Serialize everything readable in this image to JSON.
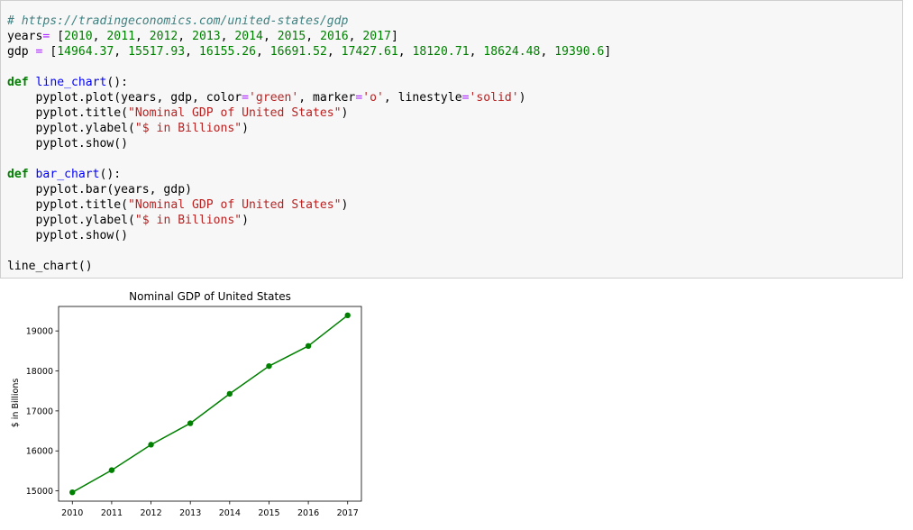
{
  "code": {
    "lines": [
      [
        {
          "t": "# https://tradingeconomics.com/united-states/gdp",
          "c": "comment"
        }
      ],
      [
        {
          "t": "years"
        },
        {
          "t": "=",
          "c": "op"
        },
        {
          "t": " ["
        },
        {
          "t": "2010",
          "c": "num"
        },
        {
          "t": ", "
        },
        {
          "t": "2011",
          "c": "num"
        },
        {
          "t": ", "
        },
        {
          "t": "2012",
          "c": "num"
        },
        {
          "t": ", "
        },
        {
          "t": "2013",
          "c": "num"
        },
        {
          "t": ", "
        },
        {
          "t": "2014",
          "c": "num"
        },
        {
          "t": ", "
        },
        {
          "t": "2015",
          "c": "num"
        },
        {
          "t": ", "
        },
        {
          "t": "2016",
          "c": "num"
        },
        {
          "t": ", "
        },
        {
          "t": "2017",
          "c": "num"
        },
        {
          "t": "]"
        }
      ],
      [
        {
          "t": "gdp "
        },
        {
          "t": "=",
          "c": "op"
        },
        {
          "t": " ["
        },
        {
          "t": "14964.37",
          "c": "num"
        },
        {
          "t": ", "
        },
        {
          "t": "15517.93",
          "c": "num"
        },
        {
          "t": ", "
        },
        {
          "t": "16155.26",
          "c": "num"
        },
        {
          "t": ", "
        },
        {
          "t": "16691.52",
          "c": "num"
        },
        {
          "t": ", "
        },
        {
          "t": "17427.61",
          "c": "num"
        },
        {
          "t": ", "
        },
        {
          "t": "18120.71",
          "c": "num"
        },
        {
          "t": ", "
        },
        {
          "t": "18624.48",
          "c": "num"
        },
        {
          "t": ", "
        },
        {
          "t": "19390.6",
          "c": "num"
        },
        {
          "t": "]"
        }
      ],
      [],
      [
        {
          "t": "def",
          "c": "kw"
        },
        {
          "t": " "
        },
        {
          "t": "line_chart",
          "c": "fn"
        },
        {
          "t": "():"
        }
      ],
      [
        {
          "t": "    pyplot.plot(years, gdp, color"
        },
        {
          "t": "=",
          "c": "op"
        },
        {
          "t": "'green'",
          "c": "str"
        },
        {
          "t": ", marker"
        },
        {
          "t": "=",
          "c": "op"
        },
        {
          "t": "'o'",
          "c": "str"
        },
        {
          "t": ", linestyle"
        },
        {
          "t": "=",
          "c": "op"
        },
        {
          "t": "'solid'",
          "c": "str"
        },
        {
          "t": ")"
        }
      ],
      [
        {
          "t": "    pyplot.title("
        },
        {
          "t": "\"Nominal GDP of United States\"",
          "c": "str"
        },
        {
          "t": ")"
        }
      ],
      [
        {
          "t": "    pyplot.ylabel("
        },
        {
          "t": "\"$ in Billions\"",
          "c": "str"
        },
        {
          "t": ")"
        }
      ],
      [
        {
          "t": "    pyplot.show()"
        }
      ],
      [],
      [
        {
          "t": "def",
          "c": "kw"
        },
        {
          "t": " "
        },
        {
          "t": "bar_chart",
          "c": "fn"
        },
        {
          "t": "():"
        }
      ],
      [
        {
          "t": "    pyplot.bar(years, gdp)"
        }
      ],
      [
        {
          "t": "    pyplot.title("
        },
        {
          "t": "\"Nominal GDP of United States\"",
          "c": "str"
        },
        {
          "t": ")"
        }
      ],
      [
        {
          "t": "    pyplot.ylabel("
        },
        {
          "t": "\"$ in Billions\"",
          "c": "str"
        },
        {
          "t": ")"
        }
      ],
      [
        {
          "t": "    pyplot.show()"
        }
      ],
      [],
      [
        {
          "t": "line_chart()"
        }
      ]
    ]
  },
  "chart_data": {
    "type": "line",
    "title": "Nominal GDP of United States",
    "xlabel": "",
    "ylabel": "$ in Billions",
    "x": [
      2010,
      2011,
      2012,
      2013,
      2014,
      2015,
      2016,
      2017
    ],
    "x_ticks": [
      "2010",
      "2011",
      "2012",
      "2013",
      "2014",
      "2015",
      "2016",
      "2017"
    ],
    "y_ticks": [
      "15000",
      "16000",
      "17000",
      "18000",
      "19000"
    ],
    "series": [
      {
        "values": [
          14964.37,
          15517.93,
          16155.26,
          16691.52,
          17427.61,
          18120.71,
          18624.48,
          19390.6
        ],
        "color": "#008000",
        "marker": "o",
        "linestyle": "solid"
      }
    ],
    "xlim": [
      2009.65,
      2017.35
    ],
    "ylim": [
      14743.06,
      19611.91
    ],
    "grid": false,
    "legend": "none"
  }
}
